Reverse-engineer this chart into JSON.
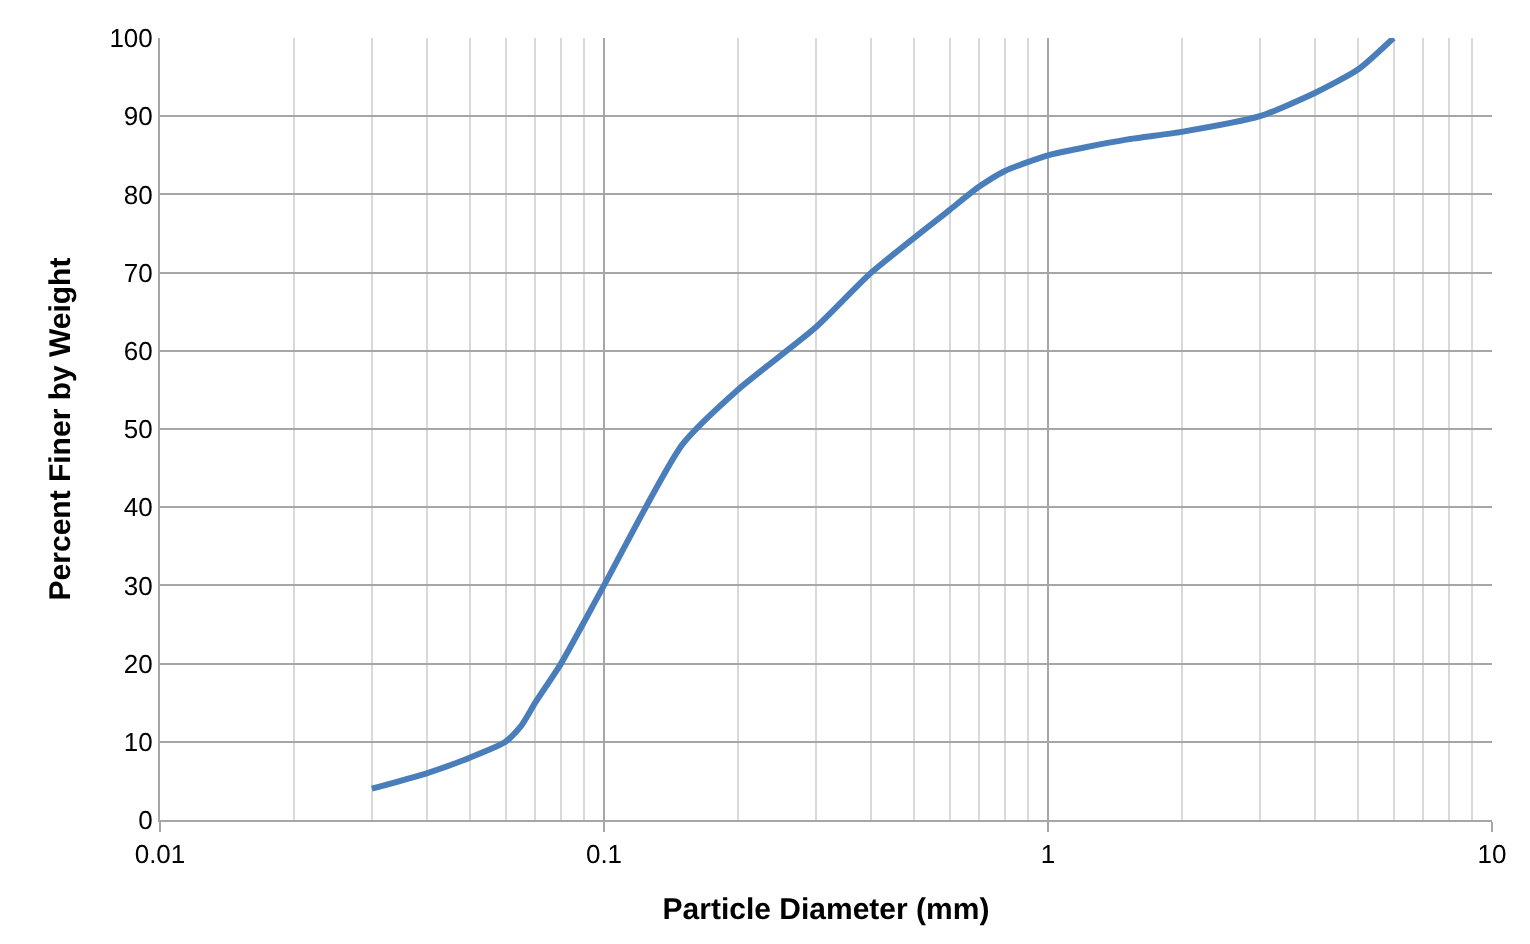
{
  "chart_data": {
    "type": "line",
    "xlabel": "Particle Diameter (mm)",
    "ylabel": "Percent Finer by Weight",
    "log": "x",
    "grid": true,
    "marker": "none",
    "line_style": "solid",
    "x": [
      0.03,
      0.04,
      0.05,
      0.06,
      0.065,
      0.07,
      0.08,
      0.1,
      0.15,
      0.2,
      0.3,
      0.4,
      0.6,
      0.7,
      0.8,
      1,
      1.5,
      2,
      3,
      4,
      5,
      6
    ],
    "series": [
      {
        "color": "#4a7ebb",
        "values": [
          4,
          6,
          8,
          10,
          12,
          15,
          20,
          30,
          48,
          55,
          63,
          70,
          78,
          81,
          83,
          85,
          87,
          88,
          90,
          93,
          96,
          100
        ]
      }
    ],
    "xlim": [
      0.01,
      10
    ],
    "xticks": [
      0.01,
      0.1,
      1,
      10
    ],
    "ylim": [
      0,
      100
    ],
    "yticks": [
      0,
      10,
      20,
      30,
      40,
      50,
      60,
      70,
      80,
      90,
      100
    ]
  }
}
